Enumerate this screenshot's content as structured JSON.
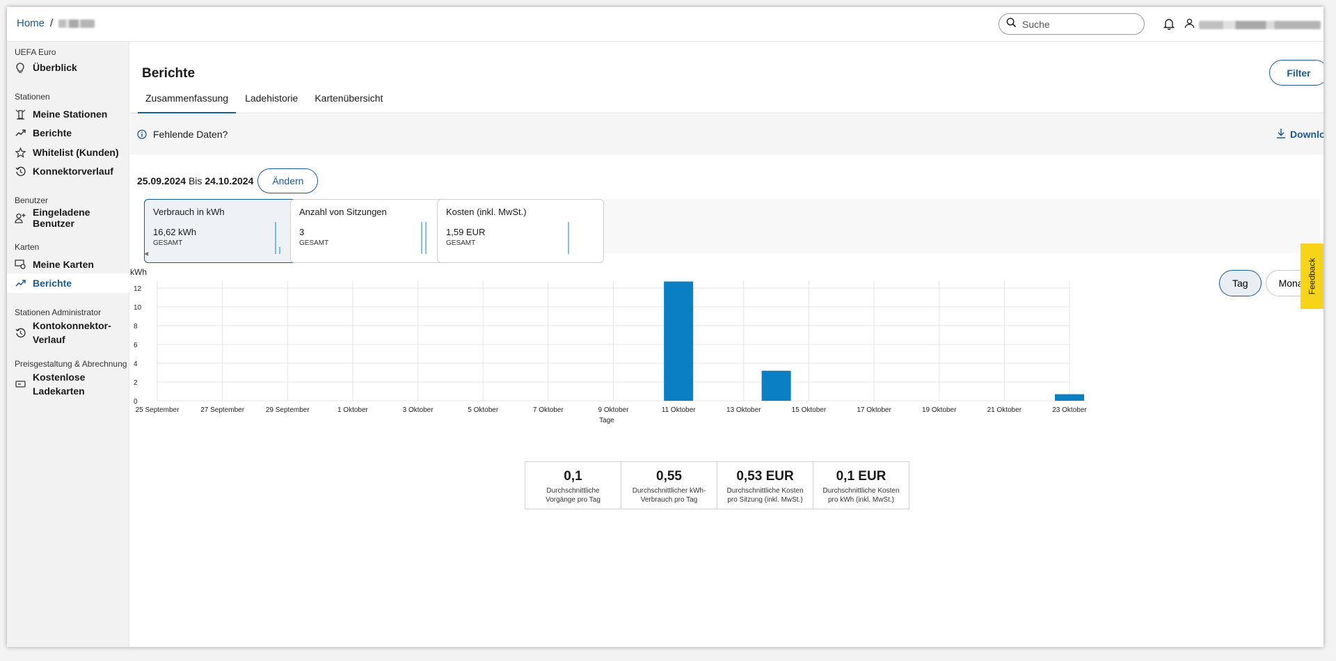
{
  "breadcrumb": {
    "home": "Home",
    "separator": "/"
  },
  "search": {
    "placeholder": "Suche"
  },
  "sidebar": {
    "sections": [
      {
        "title": "UEFA Euro"
      },
      {
        "title": "Stationen"
      },
      {
        "title": "Benutzer"
      },
      {
        "title": "Karten"
      },
      {
        "title": "Stationen Administrator"
      },
      {
        "title": "Preisgestaltung & Abrechnung"
      }
    ],
    "items": [
      {
        "label": "Überblick"
      },
      {
        "label": "Meine Stationen"
      },
      {
        "label": "Berichte"
      },
      {
        "label": "Whitelist (Kunden)"
      },
      {
        "label": "Konnektorverlauf"
      },
      {
        "label": "Eingeladene Benutzer"
      },
      {
        "label": "Meine Karten"
      },
      {
        "label": "Berichte"
      },
      {
        "label": "Kontokonnektor-",
        "label2": "Verlauf"
      },
      {
        "label": "Kostenlose",
        "label2": "Ladekarten"
      }
    ]
  },
  "page": {
    "title": "Berichte",
    "filter_label": "Filter",
    "tabs": [
      {
        "label": "Zusammenfassung"
      },
      {
        "label": "Ladehistorie"
      },
      {
        "label": "Kartenübersicht"
      }
    ],
    "info_text": "Fehlende Daten?",
    "download_label": "Download",
    "date_from": "25.09.2024",
    "date_sep": "Bis",
    "date_to": "24.10.2024",
    "change_label": "Ändern"
  },
  "cards": [
    {
      "title": "Verbrauch in kWh",
      "value": "16,62 kWh",
      "caption": "GESAMT"
    },
    {
      "title": "Anzahl von Sitzungen",
      "value": "3",
      "caption": "GESAMT"
    },
    {
      "title": "Kosten (inkl. MwSt.)",
      "value": "1,59 EUR",
      "caption": "GESAMT"
    }
  ],
  "toggle": {
    "day": "Tag",
    "month": "Monat"
  },
  "feedback_label": "Feedback",
  "colors": {
    "accent": "#1b5a92",
    "bar": "#0a7fc4",
    "feedback": "#f7d417"
  },
  "chart_data": {
    "type": "bar",
    "ylabel": "kWh",
    "xlabel": "Tage",
    "ylim": [
      0,
      12
    ],
    "yticks": [
      0,
      2,
      4,
      6,
      8,
      10,
      12
    ],
    "grid": true,
    "x_tick_labels": [
      "25 September",
      "27 September",
      "29 September",
      "1 Oktober",
      "3 Oktober",
      "5 Oktober",
      "7 Oktober",
      "9 Oktober",
      "11 Oktober",
      "13 Oktober",
      "15 Oktober",
      "17 Oktober",
      "19 Oktober",
      "21 Oktober",
      "23 Oktober"
    ],
    "categories": [
      "11 Oktober",
      "14 Oktober",
      "23 Oktober"
    ],
    "values": [
      12.7,
      3.2,
      0.7
    ]
  },
  "stats": [
    {
      "value": "0,1",
      "label": "Durchschnittliche Vorgänge pro Tag"
    },
    {
      "value": "0,55",
      "label": "Durchschnittlicher kWh-Verbrauch pro Tag"
    },
    {
      "value": "0,53 EUR",
      "label": "Durchschnittliche Kosten pro Sitzung (inkl. MwSt.)"
    },
    {
      "value": "0,1 EUR",
      "label": "Durchschnittliche Kosten pro kWh (inkl. MwSt.)"
    }
  ]
}
